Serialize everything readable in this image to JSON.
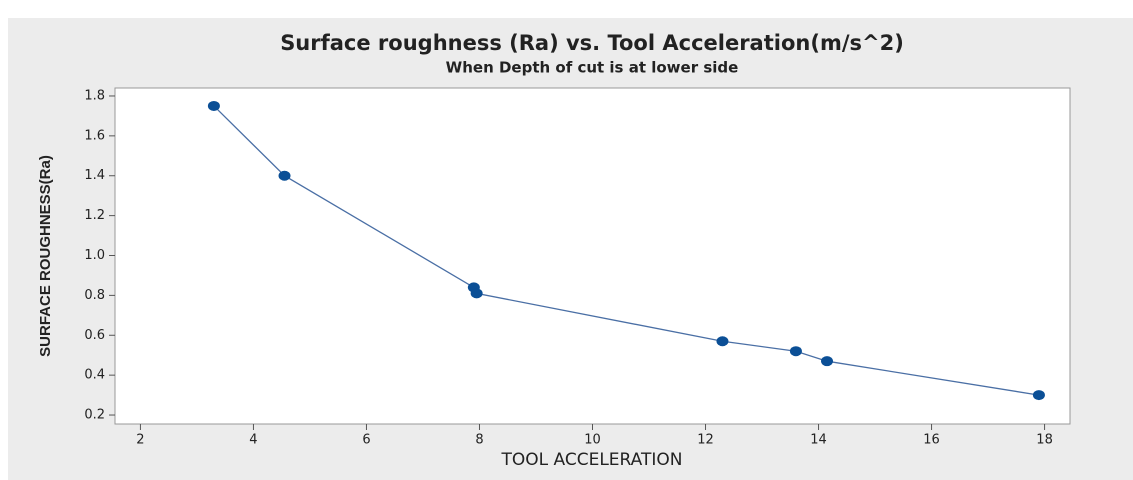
{
  "chart_data": {
    "type": "line",
    "title": "Surface roughness (Ra) vs. Tool Acceleration(m/s^2)",
    "subtitle": "When Depth of cut is at lower side",
    "x_label": "TOOL ACCELERATION",
    "y_label": "SURFACE ROUGHNESS(Ra)",
    "x": [
      3.3,
      4.55,
      7.9,
      7.95,
      12.3,
      13.6,
      14.15,
      17.9
    ],
    "series": [
      {
        "name": "Ra",
        "color": "#0b4f96",
        "values": [
          1.75,
          1.4,
          0.84,
          0.81,
          0.57,
          0.52,
          0.47,
          0.3
        ]
      }
    ],
    "xlim": [
      1.55,
      18.45
    ],
    "xticks": [
      2,
      4,
      6,
      8,
      10,
      12,
      14,
      16,
      18
    ],
    "ylim": [
      0.155,
      1.84
    ],
    "yticks": [
      0.2,
      0.4,
      0.6,
      0.8,
      {
        "value": 1,
        "label": "1.0"
      },
      1.2,
      1.4,
      1.6,
      1.8
    ]
  }
}
